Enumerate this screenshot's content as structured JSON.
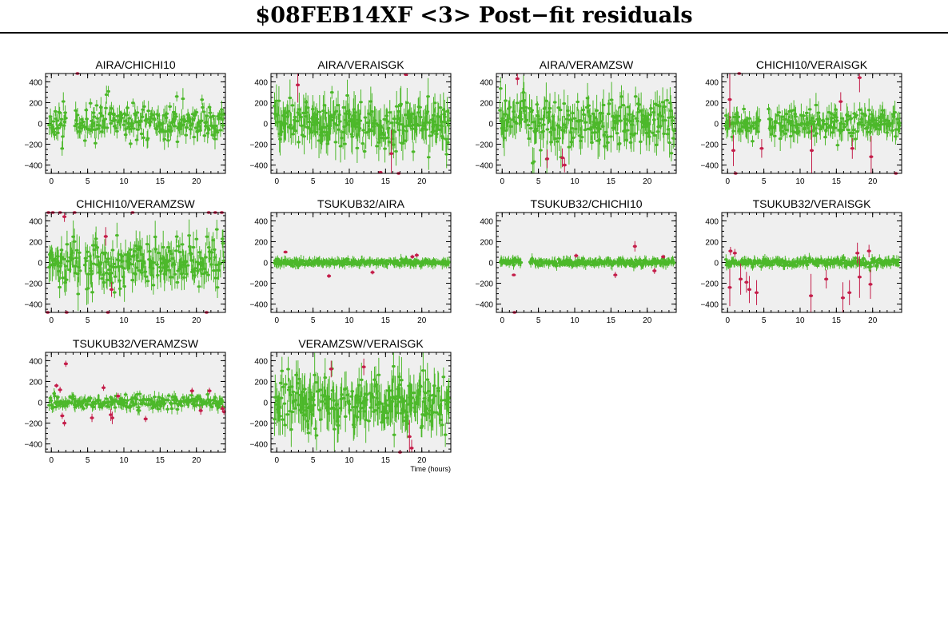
{
  "page": {
    "title": "$08FEB14XF <3> Post−fit residuals"
  },
  "colors": {
    "good": "#4cb82a",
    "flagged": "#c41e4a",
    "plot_bg": "#efefef",
    "frame": "#000000"
  },
  "axes": {
    "xlim": [
      -0.8,
      24
    ],
    "ylim": [
      -480,
      480
    ],
    "xticks": [
      0,
      5,
      10,
      15,
      20
    ],
    "yticks": [
      -400,
      -200,
      0,
      200,
      400
    ],
    "xlabel": "Time (hours)"
  },
  "chart_data": [
    {
      "type": "scatter",
      "title": "AIRA/CHICHI10",
      "noise": 80,
      "err": 70,
      "gap": [
        2.0,
        3.2
      ],
      "flagged": [
        [
          3.6,
          480,
          0
        ]
      ]
    },
    {
      "type": "scatter",
      "title": "AIRA/VERAISGK",
      "noise": 110,
      "err": 120,
      "gap": [],
      "flagged": [
        [
          2.9,
          370,
          170
        ],
        [
          14.3,
          -470,
          0
        ],
        [
          15.8,
          -290,
          230
        ],
        [
          16.8,
          -480,
          0
        ],
        [
          17.8,
          470,
          0
        ]
      ]
    },
    {
      "type": "scatter",
      "title": "AIRA/VERAMZSW",
      "noise": 120,
      "err": 120,
      "gap": [],
      "flagged": [
        [
          2.1,
          430,
          60
        ],
        [
          6.2,
          -340,
          90
        ],
        [
          8.3,
          -330,
          90
        ],
        [
          8.6,
          -400,
          70
        ]
      ]
    },
    {
      "type": "scatter",
      "title": "CHICHI10/VERAISGK",
      "noise": 70,
      "err": 80,
      "gap": [
        4.4,
        5.6
      ],
      "flagged": [
        [
          0.3,
          230,
          270
        ],
        [
          0.8,
          -260,
          150
        ],
        [
          1.1,
          -480,
          0
        ],
        [
          1.6,
          480,
          0
        ],
        [
          4.7,
          -240,
          90
        ],
        [
          11.6,
          -260,
          240
        ],
        [
          15.6,
          210,
          90
        ],
        [
          17.2,
          -240,
          100
        ],
        [
          18.2,
          440,
          140
        ],
        [
          19.8,
          -320,
          200
        ],
        [
          23.2,
          -480,
          0
        ]
      ]
    },
    {
      "type": "scatter",
      "title": "CHICHI10/VERAMZSW",
      "noise": 120,
      "err": 110,
      "gap": [
        4.0,
        4.6
      ],
      "flagged": [
        [
          -0.4,
          480,
          0
        ],
        [
          0.2,
          480,
          0
        ],
        [
          1.2,
          480,
          0
        ],
        [
          1.8,
          440,
          50
        ],
        [
          3.2,
          480,
          0
        ],
        [
          7.5,
          250,
          90
        ],
        [
          8.3,
          -260,
          70
        ],
        [
          -0.5,
          -480,
          0
        ],
        [
          2.1,
          -480,
          0
        ],
        [
          7.8,
          -480,
          0
        ],
        [
          11.2,
          480,
          0
        ],
        [
          21.4,
          -480,
          0
        ],
        [
          21.7,
          480,
          0
        ],
        [
          22.6,
          480,
          0
        ],
        [
          23.5,
          480,
          0
        ]
      ]
    },
    {
      "type": "scatter",
      "title": "TSUKUB32/AIRA",
      "noise": 14,
      "err": 35,
      "gap": [],
      "flagged": [
        [
          1.2,
          100,
          0
        ],
        [
          7.2,
          -130,
          20
        ],
        [
          13.2,
          -95,
          20
        ],
        [
          18.7,
          55,
          20
        ],
        [
          19.3,
          70,
          20
        ]
      ]
    },
    {
      "type": "scatter",
      "title": "TSUKUB32/CHICHI10",
      "noise": 14,
      "err": 35,
      "gap": [
        2.6,
        3.8
      ],
      "flagged": [
        [
          1.6,
          -120,
          0
        ],
        [
          1.7,
          -480,
          0
        ],
        [
          10.2,
          65,
          20
        ],
        [
          15.6,
          -120,
          30
        ],
        [
          18.3,
          155,
          50
        ],
        [
          21.0,
          -80,
          30
        ],
        [
          22.2,
          55,
          20
        ]
      ]
    },
    {
      "type": "scatter",
      "title": "TSUKUB32/VERAISGK",
      "noise": 18,
      "err": 35,
      "gap": [],
      "flagged": [
        [
          0.3,
          -240,
          180
        ],
        [
          0.4,
          110,
          40
        ],
        [
          1.0,
          90,
          40
        ],
        [
          1.8,
          -160,
          150
        ],
        [
          2.6,
          -190,
          100
        ],
        [
          3.0,
          -260,
          130
        ],
        [
          4.0,
          -290,
          120
        ],
        [
          11.5,
          -320,
          210
        ],
        [
          13.6,
          -160,
          90
        ],
        [
          15.9,
          -340,
          150
        ],
        [
          16.8,
          -290,
          120
        ],
        [
          17.9,
          90,
          100
        ],
        [
          18.2,
          -140,
          200
        ],
        [
          19.7,
          -210,
          140
        ],
        [
          19.5,
          110,
          60
        ]
      ]
    },
    {
      "type": "scatter",
      "title": "TSUKUB32/VERAMZSW",
      "noise": 30,
      "err": 40,
      "gap": [],
      "flagged": [
        [
          0.7,
          160,
          20
        ],
        [
          1.2,
          120,
          30
        ],
        [
          1.5,
          -130,
          30
        ],
        [
          1.8,
          -200,
          30
        ],
        [
          2.0,
          370,
          30
        ],
        [
          5.6,
          -150,
          40
        ],
        [
          7.2,
          140,
          30
        ],
        [
          8.2,
          -120,
          60
        ],
        [
          8.4,
          -150,
          60
        ],
        [
          9.2,
          60,
          30
        ],
        [
          13.0,
          -160,
          30
        ],
        [
          19.4,
          110,
          30
        ],
        [
          20.6,
          -80,
          40
        ],
        [
          21.8,
          110,
          30
        ],
        [
          23.6,
          -60,
          30
        ],
        [
          23.8,
          -90,
          30
        ]
      ]
    },
    {
      "type": "scatter",
      "title": "VERAMZSW/VERAISGK",
      "noise": 130,
      "err": 150,
      "gap": [],
      "flagged": [
        [
          7.5,
          320,
          80
        ],
        [
          12.0,
          340,
          80
        ],
        [
          17.0,
          -480,
          0
        ],
        [
          18.3,
          -330,
          160
        ],
        [
          18.6,
          -440,
          80
        ]
      ]
    }
  ]
}
